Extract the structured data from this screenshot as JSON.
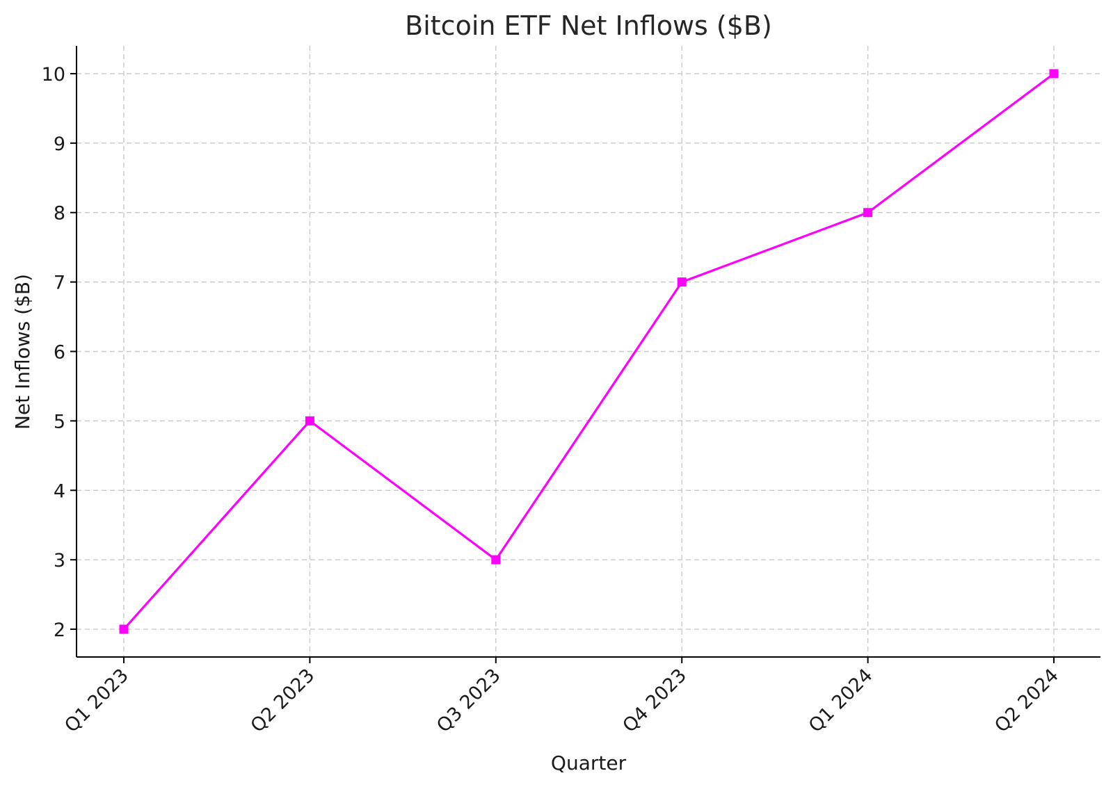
{
  "chart_data": {
    "type": "line",
    "title": "Bitcoin ETF Net Inflows ($B)",
    "xlabel": "Quarter",
    "ylabel": "Net Inflows ($B)",
    "categories": [
      "Q1 2023",
      "Q2 2023",
      "Q3 2023",
      "Q4 2023",
      "Q1 2024",
      "Q2 2024"
    ],
    "series": [
      {
        "values": [
          2,
          5,
          3,
          7,
          8,
          10
        ],
        "color": "#ff00ff",
        "marker": "square"
      }
    ],
    "yticks": [
      2,
      3,
      4,
      5,
      6,
      7,
      8,
      9,
      10
    ],
    "ylim": [
      1.6,
      10.4
    ],
    "grid": true,
    "legend": "none"
  }
}
